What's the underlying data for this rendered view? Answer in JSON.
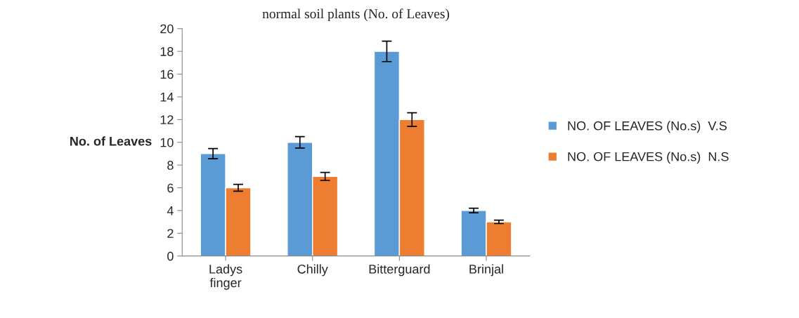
{
  "chart_data": {
    "type": "bar",
    "title": "normal soil plants (No. of Leaves)",
    "ylabel": "No. of Leaves",
    "categories": [
      "Ladys\nfinger",
      "Chilly",
      "Bitterguard",
      "Brinjal"
    ],
    "series": [
      {
        "name": "NO. OF LEAVES (No.s)  V.S",
        "color": "#5b9bd5",
        "values": [
          9,
          10,
          18,
          4
        ],
        "errors": [
          0.45,
          0.5,
          0.9,
          0.2
        ]
      },
      {
        "name": "NO. OF LEAVES (No.s)  N.S",
        "color": "#ed7d31",
        "values": [
          6,
          7,
          12,
          3
        ],
        "errors": [
          0.3,
          0.35,
          0.6,
          0.15
        ]
      }
    ],
    "ylim": [
      0,
      20
    ],
    "yticks": [
      0,
      2,
      4,
      6,
      8,
      10,
      12,
      14,
      16,
      18,
      20
    ],
    "grid": false,
    "legend": "right"
  }
}
